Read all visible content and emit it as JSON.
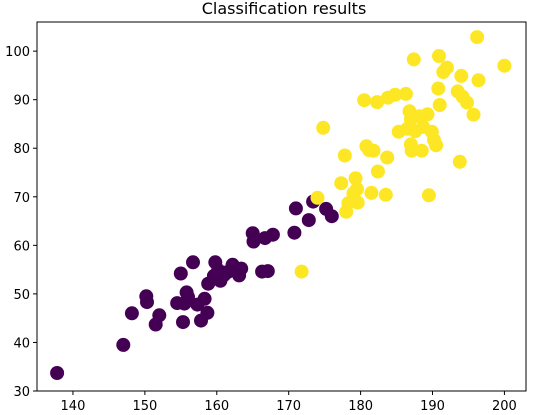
{
  "chart_data": {
    "type": "scatter",
    "title": "Classification results",
    "xlabel": "",
    "ylabel": "",
    "xlim": [
      135.0,
      203.0
    ],
    "ylim": [
      30.0,
      106.0
    ],
    "xticks": [
      140,
      150,
      160,
      170,
      180,
      190,
      200
    ],
    "yticks": [
      30,
      40,
      50,
      60,
      70,
      80,
      90,
      100
    ],
    "grid": false,
    "colors": {
      "class_0": "#440154",
      "class_1": "#fde725"
    },
    "series": [
      {
        "class": 0,
        "points": [
          [
            137.8,
            33.7
          ],
          [
            147.0,
            39.5
          ],
          [
            148.2,
            46.0
          ],
          [
            150.2,
            49.5
          ],
          [
            150.3,
            48.3
          ],
          [
            151.5,
            43.7
          ],
          [
            152.0,
            45.6
          ],
          [
            154.5,
            48.1
          ],
          [
            155.0,
            54.2
          ],
          [
            155.3,
            44.2
          ],
          [
            155.5,
            48.0
          ],
          [
            155.8,
            50.3
          ],
          [
            156.0,
            49.4
          ],
          [
            156.7,
            56.5
          ],
          [
            157.3,
            47.8
          ],
          [
            157.8,
            44.5
          ],
          [
            158.3,
            49.0
          ],
          [
            158.7,
            46.1
          ],
          [
            158.8,
            52.1
          ],
          [
            159.6,
            53.7
          ],
          [
            159.8,
            56.5
          ],
          [
            160.2,
            54.9
          ],
          [
            160.5,
            52.7
          ],
          [
            161.0,
            53.9
          ],
          [
            161.5,
            54.5
          ],
          [
            162.2,
            56.0
          ],
          [
            162.8,
            55.0
          ],
          [
            163.1,
            53.8
          ],
          [
            163.4,
            55.2
          ],
          [
            165.0,
            62.5
          ],
          [
            165.1,
            60.8
          ],
          [
            166.3,
            54.6
          ],
          [
            166.7,
            61.5
          ],
          [
            167.1,
            54.7
          ],
          [
            167.8,
            62.2
          ],
          [
            170.8,
            62.6
          ],
          [
            171.0,
            67.6
          ],
          [
            172.8,
            65.2
          ],
          [
            173.4,
            69.0
          ],
          [
            175.2,
            67.5
          ],
          [
            176.0,
            66.0
          ]
        ]
      },
      {
        "class": 1,
        "points": [
          [
            171.8,
            54.6
          ],
          [
            174.0,
            69.8
          ],
          [
            174.8,
            84.2
          ],
          [
            177.3,
            72.8
          ],
          [
            177.8,
            78.5
          ],
          [
            178.0,
            66.9
          ],
          [
            178.3,
            68.7
          ],
          [
            179.0,
            70.7
          ],
          [
            179.3,
            73.8
          ],
          [
            179.5,
            71.6
          ],
          [
            179.6,
            68.8
          ],
          [
            180.5,
            89.9
          ],
          [
            180.8,
            80.4
          ],
          [
            181.2,
            79.6
          ],
          [
            181.5,
            70.8
          ],
          [
            181.8,
            79.5
          ],
          [
            182.3,
            89.5
          ],
          [
            182.4,
            75.2
          ],
          [
            183.5,
            70.4
          ],
          [
            183.7,
            78.1
          ],
          [
            183.8,
            90.4
          ],
          [
            184.8,
            91.0
          ],
          [
            185.3,
            83.4
          ],
          [
            186.3,
            91.2
          ],
          [
            186.5,
            84.0
          ],
          [
            186.8,
            87.6
          ],
          [
            187.0,
            86.0
          ],
          [
            187.0,
            80.8
          ],
          [
            187.1,
            79.5
          ],
          [
            187.4,
            98.3
          ],
          [
            187.6,
            83.5
          ],
          [
            188.2,
            86.6
          ],
          [
            188.5,
            79.5
          ],
          [
            188.7,
            84.4
          ],
          [
            189.3,
            87.0
          ],
          [
            189.5,
            70.3
          ],
          [
            189.9,
            83.4
          ],
          [
            190.2,
            81.7
          ],
          [
            190.5,
            80.6
          ],
          [
            190.8,
            92.3
          ],
          [
            190.9,
            99.0
          ],
          [
            191.0,
            88.9
          ],
          [
            191.5,
            95.7
          ],
          [
            192.0,
            96.6
          ],
          [
            193.5,
            91.7
          ],
          [
            193.8,
            77.2
          ],
          [
            194.0,
            94.9
          ],
          [
            194.2,
            90.6
          ],
          [
            194.8,
            89.4
          ],
          [
            195.7,
            86.9
          ],
          [
            196.2,
            102.9
          ],
          [
            196.4,
            94.0
          ],
          [
            200.0,
            97.0
          ]
        ]
      }
    ]
  }
}
